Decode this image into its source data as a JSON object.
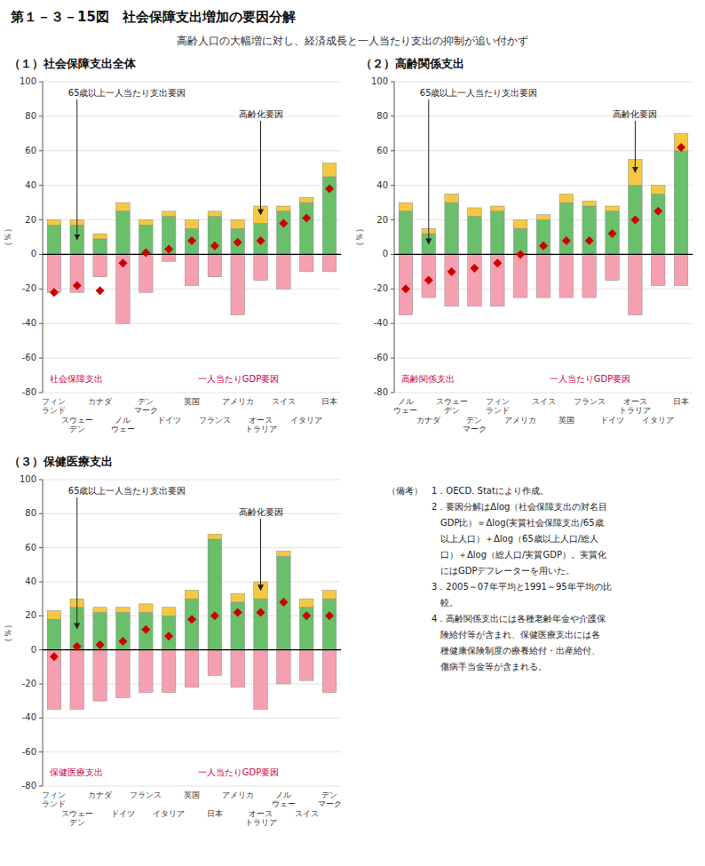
{
  "title": "第１－３－15図　社会保障支出増加の要因分解",
  "subtitle": "高齢人口の大幅増に対し、経済成長と一人当たり支出の抑制が追い付かず",
  "notes": [
    "（備考）　1．OECD. Statにより作成。",
    "　　　　　2．要因分解はΔlog（社会保障支出の対名目",
    "　　　　　　GDP比）＝Δlog(実質社会保障支出/65歳",
    "　　　　　　以上人口）＋Δlog（65歳以上人口/総人",
    "　　　　　　口）＋Δlog（総人口/実質GDP）。実質化",
    "　　　　　　にはGDPデフレーターを用いた。",
    "　　　　　3．2005～07年平均と1991～95年平均の比",
    "　　　　　　較。",
    "　　　　　4．高齢関係支出には各種老齢年金や介護保",
    "　　　　　　険給付等が含まれ、保健医療支出には各",
    "　　　　　　種健康保険制度の療養給付・出産給付、",
    "　　　　　　傷病手当金等が含まれる。"
  ],
  "chart_data": [
    {
      "type": "bar",
      "stacked": true,
      "grid": true,
      "title": "（１）社会保障支出全体",
      "ylabel": "（％）",
      "ylim": [
        -80,
        100
      ],
      "yticks": [
        -80,
        -60,
        -40,
        -20,
        0,
        20,
        40,
        60,
        80,
        100
      ],
      "categories": [
        "フィン\nランド",
        "スウェー\nデン",
        "カナダ",
        "ノル\nウェー",
        "デン\nマーク",
        "ドイツ",
        "英国",
        "フランス",
        "アメリカ",
        "オース\nトラリア",
        "スイス",
        "イタリア",
        "日本"
      ],
      "series": [
        {
          "name": "一人当たりGDP要因",
          "type": "bar",
          "color": "#f5a0b0",
          "values": [
            -22,
            -22,
            -13,
            -40,
            -22,
            -4,
            -18,
            -13,
            -35,
            -15,
            -20,
            -10,
            -10
          ]
        },
        {
          "name": "65歳以上一人当たり支出要因",
          "type": "bar",
          "color": "#6abf6a",
          "values": [
            17,
            17,
            9,
            25,
            17,
            22,
            15,
            22,
            15,
            18,
            25,
            30,
            45
          ]
        },
        {
          "name": "高齢化要因",
          "type": "bar",
          "color": "#f5c842",
          "values": [
            3,
            3,
            3,
            5,
            3,
            3,
            5,
            3,
            5,
            10,
            3,
            3,
            8
          ]
        },
        {
          "name": "社会保障支出",
          "type": "scatter",
          "marker": "diamond",
          "color": "#cc0000",
          "values": [
            -22,
            -18,
            -21,
            -5,
            1,
            3,
            8,
            5,
            7,
            8,
            18,
            21,
            38
          ]
        }
      ]
    },
    {
      "type": "bar",
      "stacked": true,
      "grid": true,
      "title": "（２）高齢関係支出",
      "ylabel": "（％）",
      "ylim": [
        -80,
        100
      ],
      "yticks": [
        -80,
        -60,
        -40,
        -20,
        0,
        20,
        40,
        60,
        80,
        100
      ],
      "categories": [
        "ノル\nウェー",
        "カナダ",
        "スウェー\nデン",
        "デン\nマーク",
        "フィン\nランド",
        "アメリカ",
        "スイス",
        "英国",
        "フランス",
        "ドイツ",
        "オース\nトラリア",
        "イタリア",
        "日本"
      ],
      "series": [
        {
          "name": "一人当たりGDP要因",
          "type": "bar",
          "color": "#f5a0b0",
          "values": [
            -35,
            -25,
            -30,
            -30,
            -30,
            -25,
            -25,
            -25,
            -25,
            -15,
            -35,
            -18,
            -18
          ]
        },
        {
          "name": "65歳以上一人当たり支出要因",
          "type": "bar",
          "color": "#6abf6a",
          "values": [
            25,
            12,
            30,
            22,
            25,
            15,
            20,
            30,
            28,
            25,
            40,
            35,
            60
          ]
        },
        {
          "name": "高齢化要因",
          "type": "bar",
          "color": "#f5c842",
          "values": [
            5,
            3,
            5,
            5,
            3,
            5,
            3,
            5,
            3,
            3,
            15,
            5,
            10
          ]
        },
        {
          "name": "高齢関係支出",
          "type": "scatter",
          "marker": "diamond",
          "color": "#cc0000",
          "values": [
            -20,
            -15,
            -10,
            -8,
            -5,
            0,
            5,
            8,
            8,
            12,
            20,
            25,
            62
          ]
        }
      ]
    },
    {
      "type": "bar",
      "stacked": true,
      "grid": true,
      "title": "（３）保健医療支出",
      "ylabel": "（％）",
      "ylim": [
        -80,
        100
      ],
      "yticks": [
        -80,
        -60,
        -40,
        -20,
        0,
        20,
        40,
        60,
        80,
        100
      ],
      "categories": [
        "フィン\nランド",
        "スウェー\nデン",
        "カナダ",
        "ドイツ",
        "フランス",
        "イタリア",
        "英国",
        "日本",
        "アメリカ",
        "オース\nトラリア",
        "ノル\nウェー",
        "スイス",
        "デン\nマーク"
      ],
      "series": [
        {
          "name": "一人当たりGDP要因",
          "type": "bar",
          "color": "#f5a0b0",
          "values": [
            -35,
            -35,
            -30,
            -28,
            -25,
            -25,
            -22,
            -15,
            -22,
            -35,
            -20,
            -18,
            -25
          ]
        },
        {
          "name": "65歳以上一人当たり支出要因",
          "type": "bar",
          "color": "#6abf6a",
          "values": [
            18,
            25,
            22,
            22,
            22,
            20,
            30,
            65,
            28,
            30,
            55,
            25,
            30
          ]
        },
        {
          "name": "高齢化要因",
          "type": "bar",
          "color": "#f5c842",
          "values": [
            5,
            5,
            3,
            3,
            5,
            5,
            5,
            3,
            5,
            10,
            3,
            5,
            5
          ]
        },
        {
          "name": "保健医療支出",
          "type": "scatter",
          "marker": "diamond",
          "color": "#cc0000",
          "values": [
            -4,
            2,
            3,
            5,
            12,
            8,
            18,
            20,
            22,
            22,
            28,
            20,
            20
          ]
        }
      ]
    }
  ]
}
